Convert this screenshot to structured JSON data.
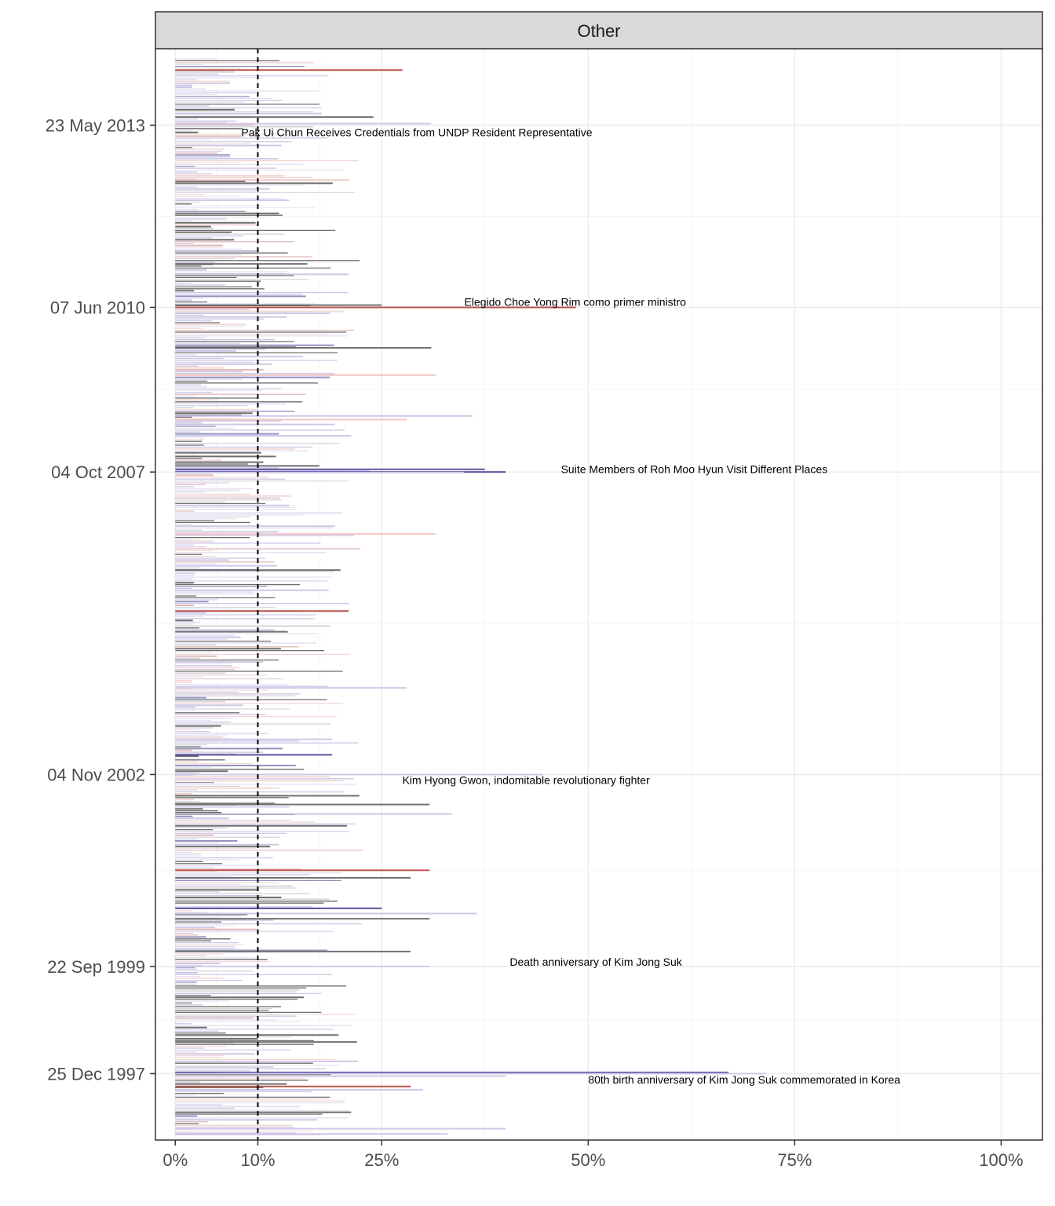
{
  "chart_data": {
    "type": "bar",
    "orientation": "horizontal",
    "panel_title": "Other",
    "xlabel": "",
    "ylabel": "",
    "xlim": [
      -0.024,
      1.05
    ],
    "ylim": [
      "1996-11-26",
      "2014-08-20"
    ],
    "x_ticks": [
      {
        "value": 0.0,
        "label": "0%"
      },
      {
        "value": 0.1,
        "label": "10%"
      },
      {
        "value": 0.25,
        "label": "25%"
      },
      {
        "value": 0.5,
        "label": "50%"
      },
      {
        "value": 0.75,
        "label": "75%"
      },
      {
        "value": 1.0,
        "label": "100%"
      }
    ],
    "y_ticks": [
      {
        "date": "2013-05-23",
        "label": "23 May 2013"
      },
      {
        "date": "2010-06-07",
        "label": "07 Jun 2010"
      },
      {
        "date": "2007-10-04",
        "label": "04 Oct 2007"
      },
      {
        "date": "2002-11-04",
        "label": "04 Nov 2002"
      },
      {
        "date": "1999-09-22",
        "label": "22 Sep 1999"
      },
      {
        "date": "1997-12-25",
        "label": "25 Dec 1997"
      }
    ],
    "reference_line": {
      "x": 0.1,
      "style": "dashed"
    },
    "grid": true,
    "colors": {
      "grey": "#636363",
      "purple": "#4b3f9a",
      "red": "#b2403a",
      "light_purple": "#cfc8e8",
      "light_red": "#efc6c4"
    },
    "annotations": [
      {
        "date": "2013-04-10",
        "x": 0.08,
        "text": "Pak Ui Chun Receives Credentials from UNDP Resident Representative"
      },
      {
        "date": "2010-07-10",
        "x": 0.35,
        "text": "Elegido Choe Yong Rim como primer ministro"
      },
      {
        "date": "2007-10-20",
        "x": 0.467,
        "text": "Suite Members of Roh Moo Hyun Visit Different Places"
      },
      {
        "date": "2002-10-01",
        "x": 0.275,
        "text": "Kim Hyong Gwon, indomitable revolutionary fighter"
      },
      {
        "date": "1999-10-20",
        "x": 0.405,
        "text": "Death anniversary of Kim Jong Suk"
      },
      {
        "date": "1997-11-20",
        "x": 0.5,
        "text": "80th birth anniversary of Kim Jong Suk commemorated in Korea"
      }
    ],
    "highlighted_bars": [
      {
        "date": "2014-04-15",
        "value": 0.275,
        "color": "red"
      },
      {
        "date": "2013-07-10",
        "value": 0.24,
        "color": "grey"
      },
      {
        "date": "2013-06-01",
        "value": 0.31,
        "color": "light_purple"
      },
      {
        "date": "2012-07-01",
        "value": 0.21,
        "color": "light_red"
      },
      {
        "date": "2011-02-20",
        "value": 0.16,
        "color": "grey"
      },
      {
        "date": "2010-12-20",
        "value": 0.21,
        "color": "light_purple"
      },
      {
        "date": "2010-06-07",
        "value": 0.485,
        "color": "red"
      },
      {
        "date": "2010-06-20",
        "value": 0.25,
        "color": "grey"
      },
      {
        "date": "2009-10-10",
        "value": 0.31,
        "color": "grey"
      },
      {
        "date": "2009-05-01",
        "value": 0.315,
        "color": "light_red"
      },
      {
        "date": "2008-09-01",
        "value": 0.36,
        "color": "light_purple"
      },
      {
        "date": "2008-08-10",
        "value": 0.28,
        "color": "light_red"
      },
      {
        "date": "2007-10-20",
        "value": 0.375,
        "color": "purple"
      },
      {
        "date": "2007-10-10",
        "value": 0.235,
        "color": "light_purple"
      },
      {
        "date": "2007-10-04",
        "value": 0.4,
        "color": "purple"
      },
      {
        "date": "2007-10-01",
        "value": 0.35,
        "color": "light_purple"
      },
      {
        "date": "2006-10-01",
        "value": 0.315,
        "color": "light_red"
      },
      {
        "date": "2006-03-01",
        "value": 0.2,
        "color": "grey"
      },
      {
        "date": "2005-07-01",
        "value": 0.21,
        "color": "red"
      },
      {
        "date": "2004-04-01",
        "value": 0.28,
        "color": "light_purple"
      },
      {
        "date": "2003-06-01",
        "value": 0.19,
        "color": "light_purple"
      },
      {
        "date": "2003-03-01",
        "value": 0.19,
        "color": "purple"
      },
      {
        "date": "2002-11-04",
        "value": 0.445,
        "color": "light_purple"
      },
      {
        "date": "2002-07-01",
        "value": 0.223,
        "color": "grey"
      },
      {
        "date": "2002-05-10",
        "value": 0.308,
        "color": "grey"
      },
      {
        "date": "2002-03-15",
        "value": 0.335,
        "color": "light_purple"
      },
      {
        "date": "2001-04-15",
        "value": 0.308,
        "color": "red"
      },
      {
        "date": "2001-03-01",
        "value": 0.285,
        "color": "grey"
      },
      {
        "date": "2000-09-01",
        "value": 0.25,
        "color": "purple"
      },
      {
        "date": "2000-07-01",
        "value": 0.308,
        "color": "grey"
      },
      {
        "date": "2000-08-01",
        "value": 0.365,
        "color": "light_purple"
      },
      {
        "date": "1999-12-20",
        "value": 0.285,
        "color": "grey"
      },
      {
        "date": "1999-09-22",
        "value": 0.308,
        "color": "light_purple"
      },
      {
        "date": "1998-07-01",
        "value": 0.22,
        "color": "grey"
      },
      {
        "date": "1998-01-01",
        "value": 0.67,
        "color": "purple"
      },
      {
        "date": "1997-12-25",
        "value": 0.715,
        "color": "light_purple"
      },
      {
        "date": "1997-12-10",
        "value": 0.4,
        "color": "light_purple"
      },
      {
        "date": "1997-10-10",
        "value": 0.285,
        "color": "red"
      },
      {
        "date": "1997-09-20",
        "value": 0.3,
        "color": "light_purple"
      },
      {
        "date": "1997-02-01",
        "value": 0.4,
        "color": "light_purple"
      },
      {
        "date": "1997-01-01",
        "value": 0.33,
        "color": "light_purple"
      }
    ]
  }
}
